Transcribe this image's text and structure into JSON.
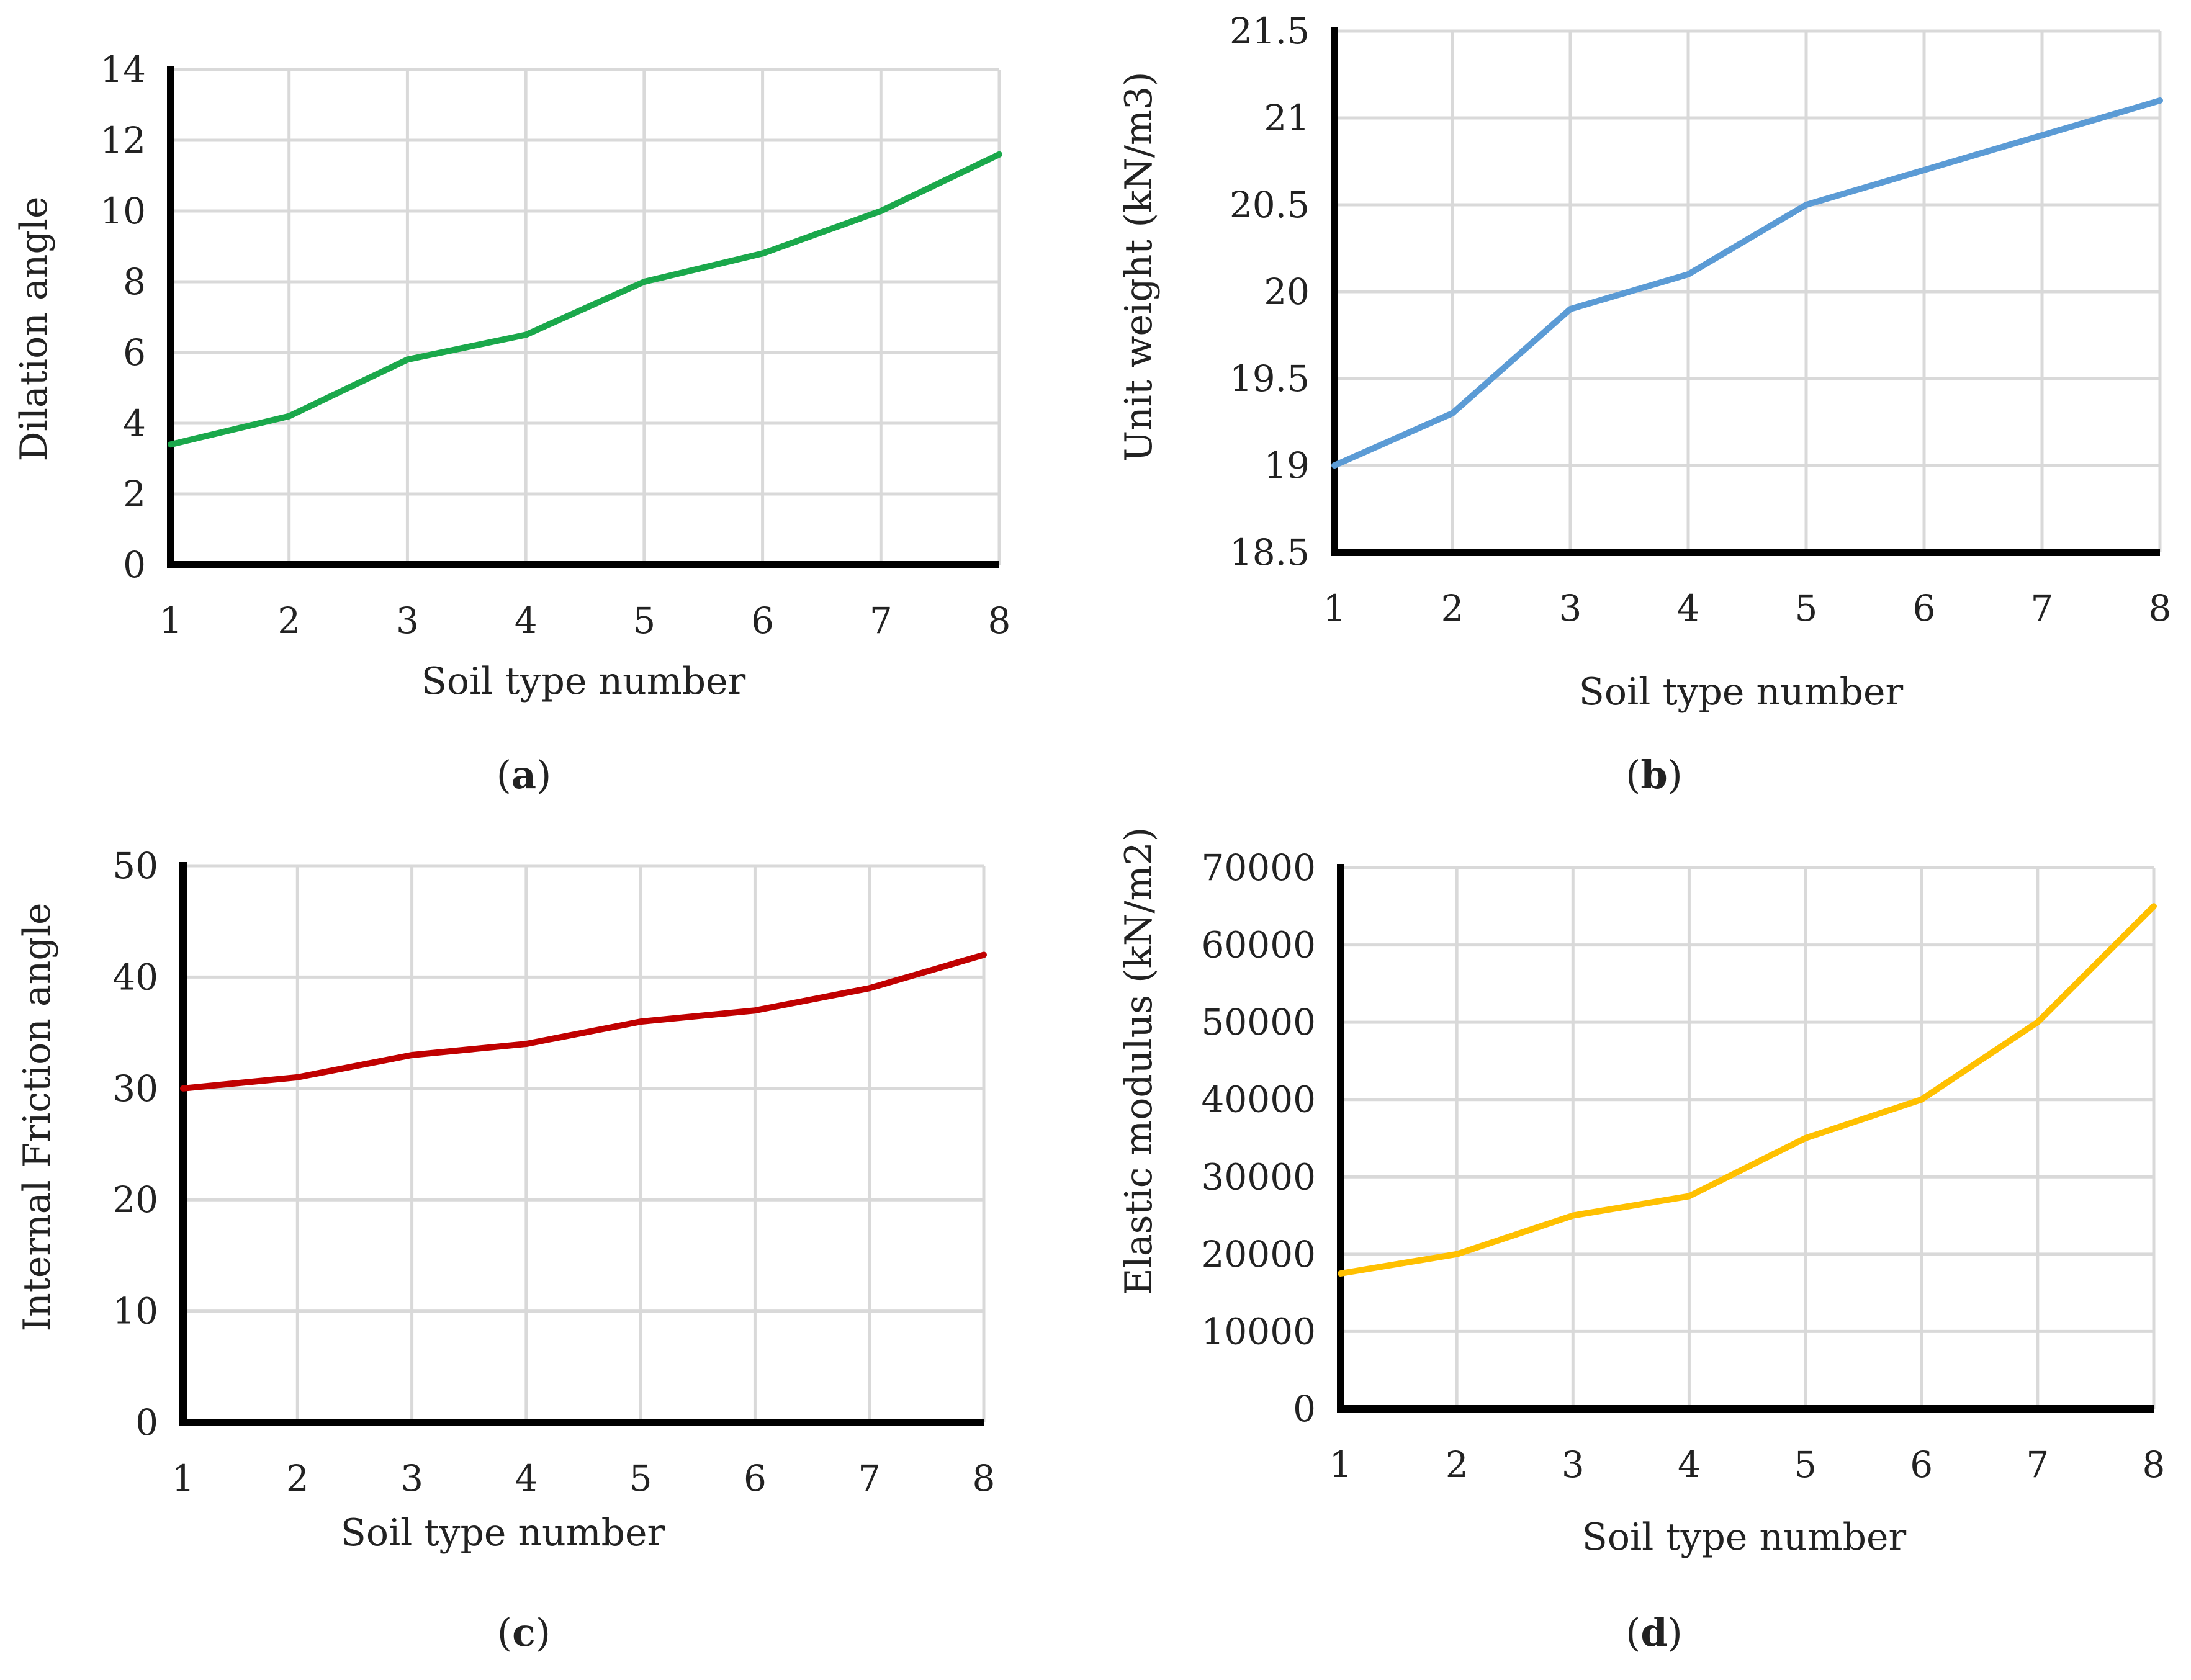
{
  "figure_labels": [
    "a",
    "b",
    "c",
    "d"
  ],
  "chart_data": [
    {
      "type": "line",
      "panel": "a",
      "title": "",
      "xlabel": "Soil type number",
      "ylabel": "Dilation angle",
      "x": [
        1,
        2,
        3,
        4,
        5,
        6,
        7,
        8
      ],
      "xlim": [
        1,
        8
      ],
      "ylim": [
        0,
        14
      ],
      "yticks": [
        "0",
        "2",
        "4",
        "6",
        "8",
        "10",
        "12",
        "14"
      ],
      "xticks": [
        "1",
        "2",
        "3",
        "4",
        "5",
        "6",
        "7",
        "8"
      ],
      "grid": true,
      "series": [
        {
          "name": "Dilation angle",
          "color": "#1aa84b",
          "values": [
            3.4,
            4.2,
            5.8,
            6.5,
            8.0,
            8.8,
            10.0,
            11.6
          ]
        }
      ]
    },
    {
      "type": "line",
      "panel": "b",
      "title": "",
      "xlabel": "Soil type number",
      "ylabel": "Unit weight (kN/m3)",
      "x": [
        1,
        2,
        3,
        4,
        5,
        6,
        7,
        8
      ],
      "xlim": [
        1,
        8
      ],
      "ylim": [
        18.5,
        21.5
      ],
      "yticks": [
        "18.5",
        "19",
        "19.5",
        "20",
        "20.5",
        "21",
        "21.5"
      ],
      "xticks": [
        "1",
        "2",
        "3",
        "4",
        "5",
        "6",
        "7",
        "8"
      ],
      "grid": true,
      "series": [
        {
          "name": "Unit weight",
          "color": "#5b9bd5",
          "values": [
            19.0,
            19.3,
            19.9,
            20.1,
            20.5,
            20.7,
            20.9,
            21.1
          ]
        }
      ]
    },
    {
      "type": "line",
      "panel": "c",
      "title": "",
      "xlabel": "Soil type number",
      "ylabel": "Internal Friction angle",
      "x": [
        1,
        2,
        3,
        4,
        5,
        6,
        7,
        8
      ],
      "xlim": [
        1,
        8
      ],
      "ylim": [
        0,
        50
      ],
      "yticks": [
        "0",
        "10",
        "20",
        "30",
        "40",
        "50"
      ],
      "xticks": [
        "1",
        "2",
        "3",
        "4",
        "5",
        "6",
        "7",
        "8"
      ],
      "grid": true,
      "series": [
        {
          "name": "Internal Friction angle",
          "color": "#c00000",
          "values": [
            30,
            31,
            33,
            34,
            36,
            37,
            39,
            42
          ]
        }
      ]
    },
    {
      "type": "line",
      "panel": "d",
      "title": "",
      "xlabel": "Soil type number",
      "ylabel": "Elastic modulus (kN/m2)",
      "x": [
        1,
        2,
        3,
        4,
        5,
        6,
        7,
        8
      ],
      "xlim": [
        1,
        8
      ],
      "ylim": [
        0,
        70000
      ],
      "yticks": [
        "0",
        "10000",
        "20000",
        "30000",
        "40000",
        "50000",
        "60000",
        "70000"
      ],
      "xticks": [
        "1",
        "2",
        "3",
        "4",
        "5",
        "6",
        "7",
        "8"
      ],
      "grid": true,
      "series": [
        {
          "name": "Elastic modulus",
          "color": "#ffc000",
          "values": [
            17500,
            20000,
            25000,
            27500,
            35000,
            40000,
            50000,
            65000
          ]
        }
      ]
    }
  ]
}
